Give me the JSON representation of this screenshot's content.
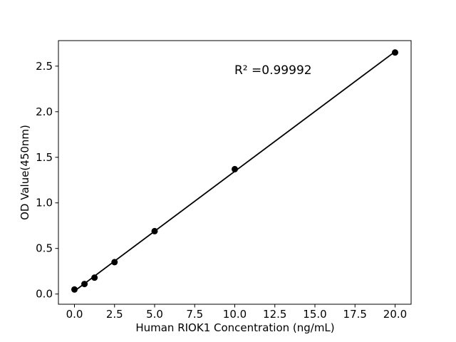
{
  "chart_data": {
    "type": "scatter",
    "title": "",
    "xlabel": "Human RIOK1 Concentration (ng/mL)",
    "ylabel": "OD Value(450nm)",
    "annotation": "R² =0.99992",
    "r_squared": 0.99992,
    "x": [
      0,
      0.625,
      1.25,
      2.5,
      5,
      10,
      20
    ],
    "y": [
      0.05,
      0.11,
      0.18,
      0.35,
      0.69,
      1.37,
      2.65
    ],
    "fit_line": true,
    "xlim": [
      -1,
      21
    ],
    "ylim": [
      -0.112,
      2.78
    ],
    "xticks": {
      "values": [
        0,
        2.5,
        5,
        7.5,
        10,
        12.5,
        15,
        17.5,
        20
      ],
      "labels": [
        "0.0",
        "2.5",
        "5.0",
        "7.5",
        "10.0",
        "12.5",
        "15.0",
        "17.5",
        "20.0"
      ]
    },
    "yticks": {
      "values": [
        0,
        0.5,
        1,
        1.5,
        2,
        2.5
      ],
      "labels": [
        "0.0",
        "0.5",
        "1.0",
        "1.5",
        "2.0",
        "2.5"
      ]
    },
    "grid": false,
    "legend": null,
    "colors": {
      "marker": "#000000",
      "line": "#000000",
      "spine": "#000000",
      "text": "#000000",
      "background": "#ffffff"
    }
  }
}
